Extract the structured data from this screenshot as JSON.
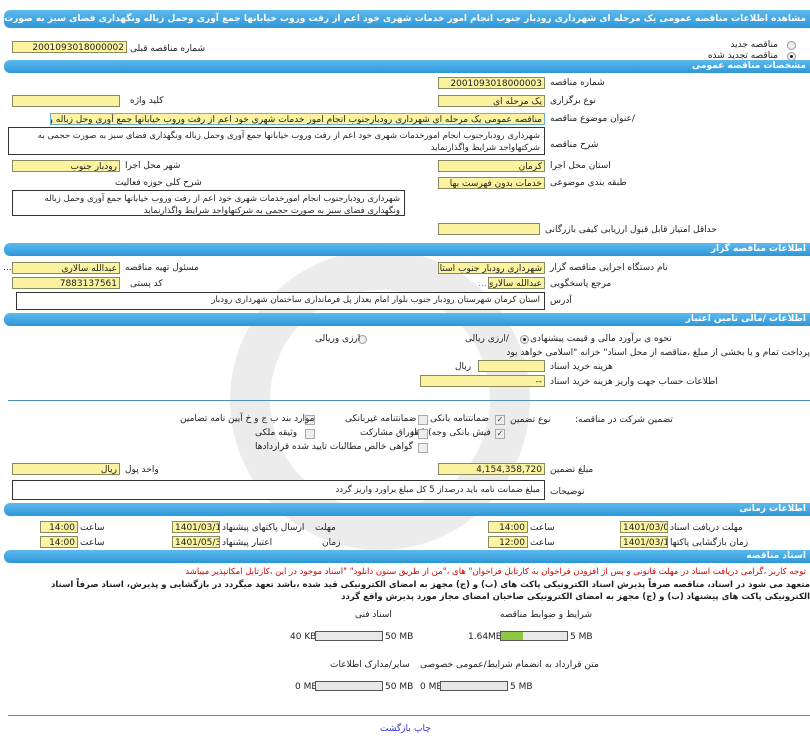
{
  "header": {
    "title": "مشاهده اطلاعات مناقصه عمومی یک مرحله ای شهرداری رودبار جنوب انجام امور خدمات شهری خود اعم از رفت وروب خیابانها جمع آوری وحمل زباله ونگهداری فضای سبز به صورت حجمی"
  },
  "tender_type": {
    "new_label": "مناقصه جدید",
    "renewed_label": "مناقصه تجدید شده",
    "selected": "renewed",
    "prev_number_label": "شماره مناقصه قبلی",
    "prev_number": "2001093018000002"
  },
  "general": {
    "section": "مشخصات مناقصه عمومی",
    "number_label": "شماره مناقصه",
    "number": "2001093018000003",
    "type_label": "نوع برگزاری",
    "type": "یک مرحله ای",
    "keyword_label": "کلید واژه",
    "keyword": "",
    "title_label": "/عنوان موضوع مناقصه",
    "title": "مناقصه عمومی یک مرحله ای شهرداری رودبارجنوب انجام امور خدمات شهری خود اعم از رفت وروب خیابانها جمع آوری وحل زباله و",
    "desc_label": "شرح مناقصه",
    "desc": "شهرداری رودبارجنوب انجام امورخدمات شهری خود اعم از رفت وروب خیابانها جمع آوری وحمل زباله ونگهداری فضای سبز به صورت حجمی به شرکتهاواجد شرایط واگذارنماید",
    "province_label": "استان محل اجرا",
    "province": "کرمان",
    "city_label": "شهر محل اجرا",
    "city": "رودبار جنوب",
    "category_label": "طبقه بندی موضوعی",
    "category": "خدمات بدون فهرست بها",
    "activity_label": "شرح کلی حوزه فعالیت",
    "activity": "شهرداری رودبارجنوب انجام امورخدمات شهری خود اعم از رفت وروب خیابانها جمع آوری وحمل زباله ونگهداری فضای سبز به صورت حجمی به شرکتهاواجد شرایط واگذارنماید",
    "min_score_label": "حداقل امتیاز قابل قبول ارزیابی کیفی بازرگانی",
    "min_score": ""
  },
  "organizer": {
    "section": "اطلاعات مناقصه گزار",
    "org_label": "نام دستگاه اجرایی مناقصه گزار",
    "org": "شهرداری رودبار جنوب استا",
    "resp_label": "مسئول تهیه مناقصه",
    "resp": "عبدالله سالاری",
    "ref_label": "مرجع پاسخگویی",
    "ref": "عبدالله سالاری مع",
    "postal_label": "کد پستی",
    "postal": "7883137561",
    "address_label": "آدرس",
    "address": "استان کرمان شهرستان رودبار جنوب  بلوار امام بعداز پل فرمانداری ساختمان شهرداری رودبار",
    "ellipsis": "..."
  },
  "finance": {
    "section": "اطلاعات /مالی تامین اعتبار",
    "estimate_label": "نحوه ی برآورد مالی و قیمت پیشنهادی",
    "rial_label": "/ارزی ریالی",
    "forex_label": "ارزی وریالی",
    "selected": "rial",
    "treasury_note": "پرداخت تمام و یا بخشی از مبلغ ،مناقصه از محل اسناد\" خزانه \"اسلامی خواهد بود",
    "doc_fee_label": "هزینه خرید اسناد",
    "doc_fee": "",
    "currency": "ریال",
    "account_label": "اطلاعات حساب جهت واریز هزینه خرید اسناد",
    "account": "--",
    "guarantee_label": "تضمین شرکت در مناقصه:",
    "guarantee_type_label": "نوع   تضمین",
    "guarantees": [
      {
        "label": "ضمانتنامه  بانکی",
        "checked": true
      },
      {
        "label": "ضمانتنامه غیربانکی",
        "checked": false
      },
      {
        "label": "موارد  بند  ب ج و خ آیین نامه تضامین",
        "checked": false
      },
      {
        "label": "فیش  بانکی وجه) (نقد",
        "checked": true
      },
      {
        "label": "اوراق  مشارکت",
        "checked": false
      },
      {
        "label": "وثیقه ملکی",
        "checked": false
      },
      {
        "label": "گواهی  خالص مطالبات تایید شده قراردادها",
        "checked": false
      }
    ],
    "amount_label": "مبلغ تضمین",
    "amount": "4,154,358,720",
    "unit_label": "واحد پول",
    "unit": "ریال",
    "notes_label": "توضیحات",
    "notes": "مبلغ ضمانت نامه باید درصداز 5 کل  مبلغ براورد واریز گردد"
  },
  "timing": {
    "section": "اطلاعات زمانی",
    "doc_deadline_label": "مهلت دریافت اسناد",
    "doc_deadline_date": "1401/03/01",
    "doc_deadline_time": "14:00",
    "deadline_label": "مهلت",
    "submit_label": "ارسال پاکتهای پیشنهاد",
    "submit_date": "1401/03/11",
    "submit_time": "14:00",
    "opening_label": "زمان بازگشایی پاکتها",
    "opening_date": "1401/03/12",
    "opening_time": "12:00",
    "time_label": "زمان",
    "validity_label": "اعتبار پیشنهاد",
    "validity_date": "1401/05/31",
    "validity_time": "14:00",
    "hour_label": "ساعت"
  },
  "documents": {
    "section": "اسناد مناقصه",
    "warning": "توجه کاربر ،گرامی دریافت اسناد در مهلت قانونی و پس از افزودن فراخوان به کارتابل فراخوان\" های  ،\"من از طریق  ستون دانلود\" \"اسناد موجود در این ،کارتابل امکانپذیر میباشد",
    "commitment": "متعهد می شود در اسناد، مناقصه صرفاً پذیرش اسناد الکترونیکی پاکت های (ب) و (ج) مجهز به امضای الکترونیکی قید شده ،باشد تعهد میگردد در بازگشایی و پذیرش، اسناد صرفاً اسناد الکترونیکی پاکت های پیشنهاد (ب) و (ج) مجهز به امضای الکترونیکی صاحبان امضای مجاز مورد پذیرش واقع گردد",
    "files": [
      {
        "label": "شرایط و ضوابط مناقصه",
        "used": "1.64MB",
        "max": "5 MB",
        "fraction": 0.33
      },
      {
        "label": "اسناد فنی",
        "used": "40 KB",
        "max": "50 MB",
        "fraction": 0.001
      },
      {
        "label": "متن قرارداد به انضمام شرایط/عمومی خصوصی",
        "used": "0 MB",
        "max": "5 MB",
        "fraction": 0
      },
      {
        "label": "سایر/مدارک اطلاعات",
        "used": "0 MB",
        "max": "50 MB",
        "fraction": 0
      }
    ]
  },
  "footer": {
    "print_label": "چاپ",
    "back_label": "بازگشت"
  },
  "colors": {
    "header": "#2e97d8",
    "field": "#fbf3a0",
    "progress": "#8dc63f",
    "warning": "#d00000",
    "link": "#3333cc"
  }
}
